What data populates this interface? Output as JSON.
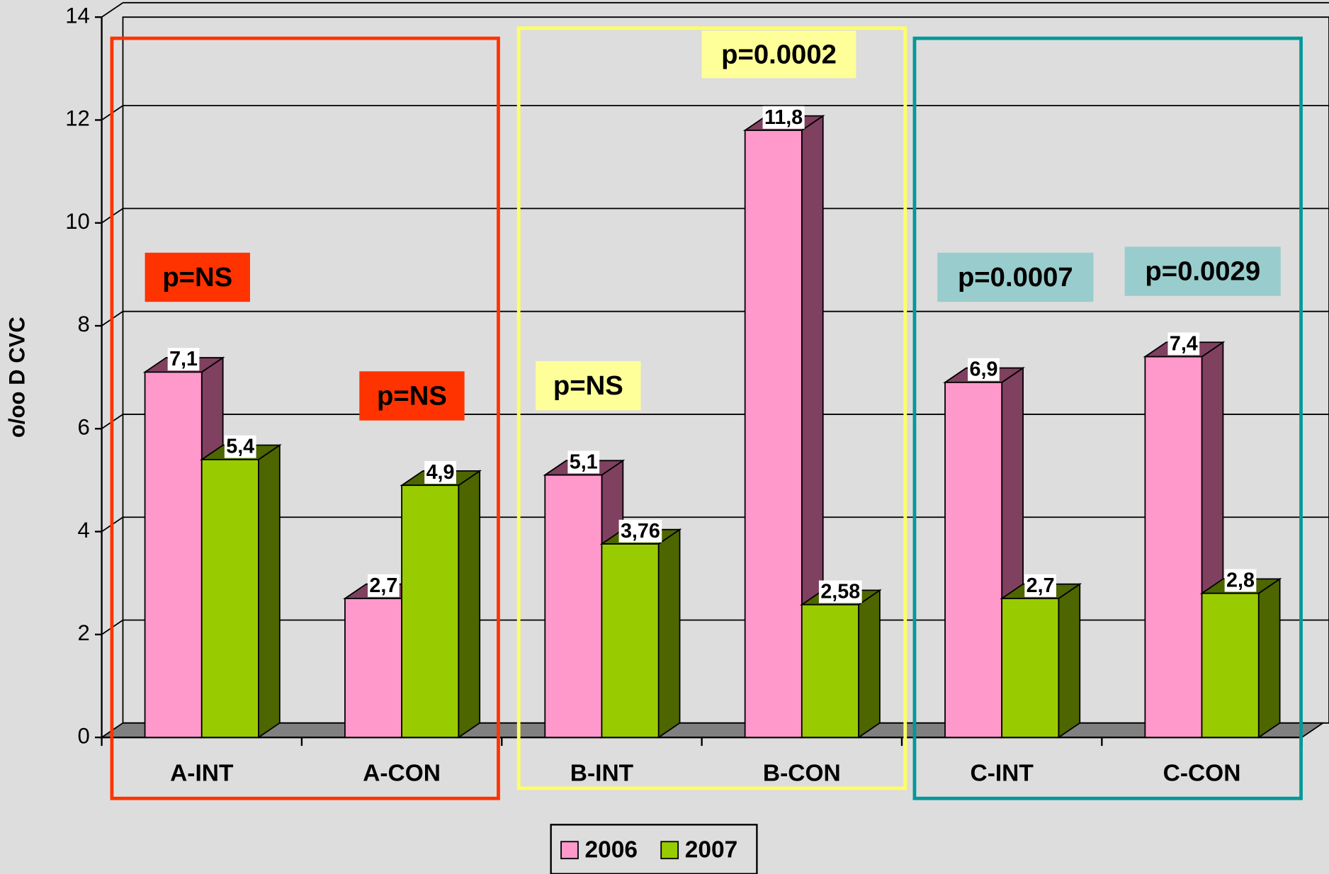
{
  "chart_data": {
    "type": "bar3d",
    "y_label": "o/oo D CVC",
    "categories": [
      "A-INT",
      "A-CON",
      "B-INT",
      "B-CON",
      "C-INT",
      "C-CON"
    ],
    "series": [
      {
        "name": "2006",
        "color": "#ff99cc",
        "side_color": "#804060",
        "values": [
          7.1,
          2.7,
          5.1,
          11.8,
          6.9,
          7.4
        ],
        "value_labels": [
          "7,1",
          "2,7",
          "5,1",
          "11,8",
          "6,9",
          "7,4"
        ]
      },
      {
        "name": "2007",
        "color": "#99cc00",
        "side_color": "#4d6600",
        "values": [
          5.4,
          4.9,
          3.76,
          2.58,
          2.7,
          2.8
        ],
        "value_labels": [
          "5,4",
          "4,9",
          "3,76",
          "2,58",
          "2,7",
          "2,8"
        ]
      }
    ],
    "ylim": [
      0,
      14
    ],
    "yticks": [
      0,
      2,
      4,
      6,
      8,
      10,
      12,
      14
    ],
    "grid": true,
    "annotations": [
      {
        "text": "p=NS",
        "color": "#ff3300"
      },
      {
        "text": "p=NS",
        "color": "#ff3300"
      },
      {
        "text": "p=NS",
        "color": "#ffff99"
      },
      {
        "text": "p=0.0002",
        "color": "#ffff99"
      },
      {
        "text": "p=0.0007",
        "color": "#99cccc"
      },
      {
        "text": "p=0.0029",
        "color": "#99cccc"
      }
    ]
  }
}
